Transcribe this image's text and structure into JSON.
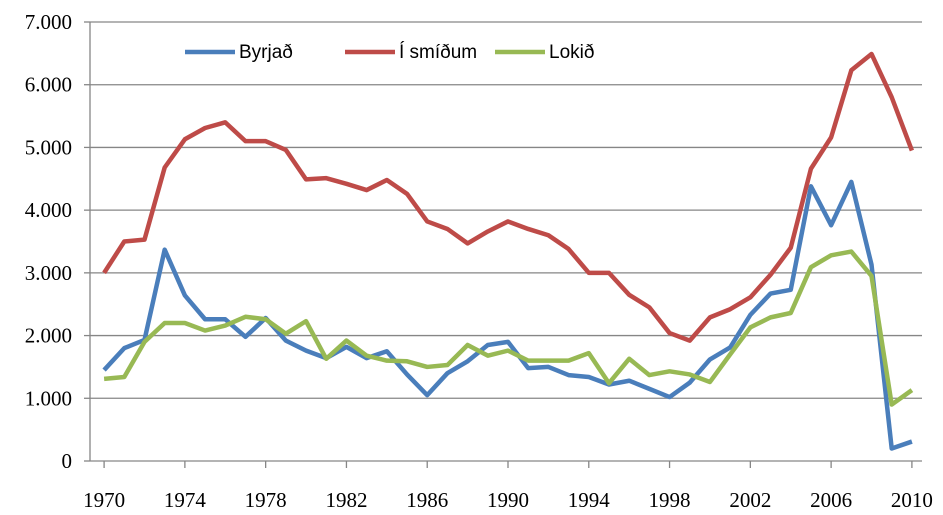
{
  "chart_data": {
    "type": "line",
    "x": [
      1970,
      1971,
      1972,
      1973,
      1974,
      1975,
      1976,
      1977,
      1978,
      1979,
      1980,
      1981,
      1982,
      1983,
      1984,
      1985,
      1986,
      1987,
      1988,
      1989,
      1990,
      1991,
      1992,
      1993,
      1994,
      1995,
      1996,
      1997,
      1998,
      1999,
      2000,
      2001,
      2002,
      2003,
      2004,
      2005,
      2006,
      2007,
      2008,
      2009,
      2010
    ],
    "series": [
      {
        "name": "Byrjað",
        "color": "#4a7ebb",
        "values": [
          1450,
          1800,
          1930,
          3370,
          2640,
          2260,
          2260,
          1980,
          2280,
          1920,
          1760,
          1640,
          1820,
          1640,
          1750,
          1380,
          1050,
          1400,
          1590,
          1850,
          1900,
          1480,
          1500,
          1370,
          1340,
          1220,
          1280,
          1150,
          1020,
          1250,
          1620,
          1810,
          2330,
          2670,
          2730,
          4380,
          3760,
          4450,
          3130,
          200,
          310
        ]
      },
      {
        "name": "Í smíðum",
        "color": "#be4b48",
        "values": [
          3000,
          3500,
          3530,
          4680,
          5130,
          5310,
          5400,
          5100,
          5100,
          4960,
          4490,
          4510,
          4420,
          4320,
          4480,
          4260,
          3820,
          3700,
          3470,
          3660,
          3820,
          3700,
          3600,
          3380,
          3000,
          3000,
          2650,
          2450,
          2040,
          1920,
          2290,
          2420,
          2610,
          2970,
          3400,
          4660,
          5160,
          6230,
          6490,
          5800,
          4950
        ]
      },
      {
        "name": "Lokið",
        "color": "#98b954",
        "values": [
          1310,
          1340,
          1900,
          2200,
          2200,
          2080,
          2160,
          2300,
          2260,
          2030,
          2230,
          1630,
          1920,
          1680,
          1600,
          1590,
          1500,
          1530,
          1850,
          1680,
          1760,
          1600,
          1600,
          1600,
          1720,
          1240,
          1630,
          1370,
          1430,
          1380,
          1260,
          1700,
          2130,
          2290,
          2360,
          3090,
          3280,
          3340,
          2950,
          900,
          1130
        ]
      }
    ],
    "xlim": [
      1969.5,
      2010.5
    ],
    "xticks": [
      1970,
      1974,
      1978,
      1982,
      1986,
      1990,
      1994,
      1998,
      2002,
      2006,
      2010
    ],
    "ylim": [
      0,
      7000
    ],
    "yticks": [
      0,
      {
        "value": 1000,
        "label": "1.000"
      },
      {
        "value": 2000,
        "label": "2.000"
      },
      {
        "value": 3000,
        "label": "3.000"
      },
      {
        "value": 4000,
        "label": "4.000"
      },
      {
        "value": 5000,
        "label": "5.000"
      },
      {
        "value": 6000,
        "label": "6.000"
      },
      {
        "value": 7000,
        "label": "7.000"
      }
    ],
    "grid": true,
    "legend": "top"
  }
}
